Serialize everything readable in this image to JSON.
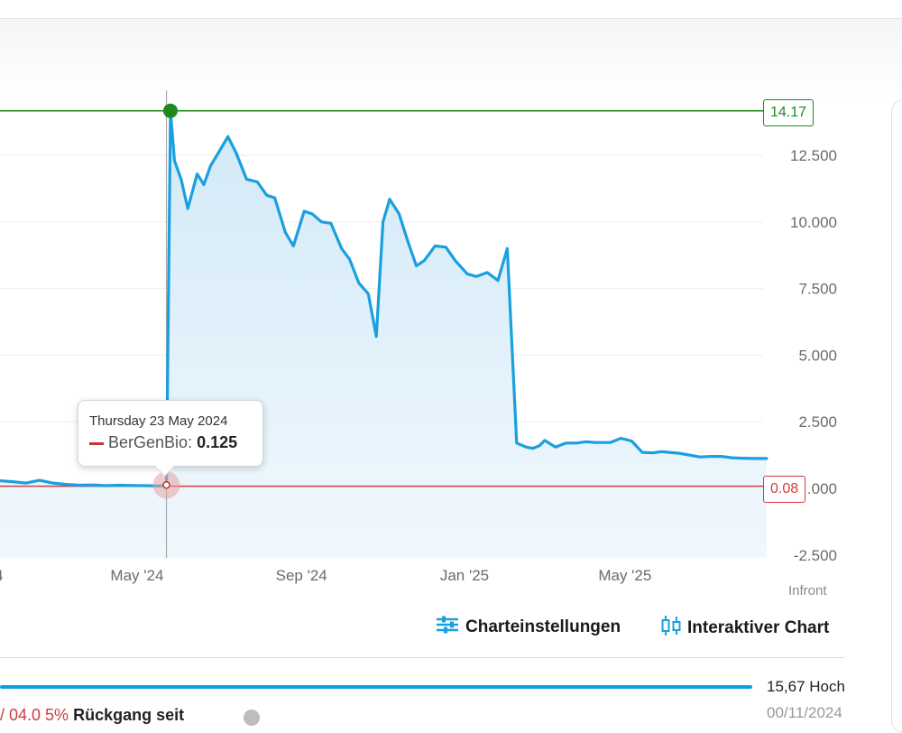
{
  "chart_data": {
    "type": "area",
    "series": [
      {
        "name": "BerGenBio",
        "x": [
          "2024-01-15",
          "2024-01-29",
          "2024-02-08",
          "2024-02-18",
          "2024-02-28",
          "2024-03-09",
          "2024-03-19",
          "2024-03-29",
          "2024-04-08",
          "2024-04-18",
          "2024-04-28",
          "2024-05-08",
          "2024-05-18",
          "2024-05-23",
          "2024-05-26",
          "2024-05-29",
          "2024-06-03",
          "2024-06-08",
          "2024-06-15",
          "2024-06-20",
          "2024-06-25",
          "2024-07-01",
          "2024-07-08",
          "2024-07-14",
          "2024-07-22",
          "2024-07-30",
          "2024-08-06",
          "2024-08-12",
          "2024-08-20",
          "2024-08-26",
          "2024-09-03",
          "2024-09-09",
          "2024-09-16",
          "2024-09-23",
          "2024-10-01",
          "2024-10-07",
          "2024-10-14",
          "2024-10-21",
          "2024-10-27",
          "2024-11-01",
          "2024-11-06",
          "2024-11-13",
          "2024-11-20",
          "2024-11-26",
          "2024-12-02",
          "2024-12-10",
          "2024-12-18",
          "2024-12-25",
          "2025-01-03",
          "2025-01-10",
          "2025-01-18",
          "2025-01-26",
          "2025-02-02",
          "2025-02-09",
          "2025-02-16",
          "2025-02-21",
          "2025-02-26",
          "2025-03-02",
          "2025-03-10",
          "2025-03-18",
          "2025-03-26",
          "2025-04-02",
          "2025-04-08",
          "2025-04-14",
          "2025-04-20",
          "2025-04-28",
          "2025-05-06",
          "2025-05-14",
          "2025-05-22",
          "2025-05-28",
          "2025-06-03",
          "2025-06-10",
          "2025-06-18",
          "2025-06-26",
          "2025-07-04",
          "2025-07-12",
          "2025-07-20",
          "2025-07-28",
          "2025-08-05",
          "2025-08-15"
        ],
        "values": [
          0.3,
          0.25,
          0.2,
          0.3,
          0.2,
          0.15,
          0.12,
          0.13,
          0.1,
          0.12,
          0.11,
          0.1,
          0.09,
          0.125,
          14.17,
          12.3,
          11.6,
          10.5,
          11.8,
          11.4,
          12.1,
          12.6,
          13.2,
          12.6,
          11.6,
          11.5,
          11.0,
          10.9,
          9.6,
          9.1,
          10.4,
          10.3,
          10.0,
          9.95,
          9.0,
          8.6,
          7.7,
          7.3,
          5.7,
          10.0,
          10.85,
          10.3,
          9.2,
          8.35,
          8.55,
          9.1,
          9.05,
          8.55,
          8.05,
          7.95,
          8.1,
          7.8,
          9.0,
          1.7,
          1.55,
          1.5,
          1.6,
          1.8,
          1.55,
          1.7,
          1.7,
          1.75,
          1.72,
          1.72,
          1.72,
          1.88,
          1.78,
          1.35,
          1.33,
          1.38,
          1.35,
          1.32,
          1.25,
          1.18,
          1.2,
          1.2,
          1.15,
          1.13,
          1.12,
          1.12
        ]
      }
    ],
    "x_tick_labels": [
      "May '24",
      "Sep '24",
      "Jan '25",
      "May '25"
    ],
    "x_tick_dates": [
      "2024-05-01",
      "2024-09-01",
      "2025-01-01",
      "2025-05-01"
    ],
    "y_tick_labels": [
      "12.500",
      "10.000",
      "7.500",
      "5.000",
      "2.500",
      ".000",
      "-2.500"
    ],
    "y_tick_values": [
      12.5,
      10.0,
      7.5,
      5.0,
      2.5,
      0,
      -2.5
    ],
    "ylim": [
      -2.6,
      14.9
    ],
    "grid": true,
    "high_marker": {
      "label": "14.17",
      "value": 14.17,
      "date": "2024-05-26",
      "color": "#1e8a1e"
    },
    "low_marker": {
      "label": "0.08",
      "value": 0.08,
      "color": "#d43a3a"
    },
    "tooltip": {
      "date": "Thursday 23 May 2024",
      "series": "BerGenBio",
      "value": "0.125",
      "x": "2024-05-23",
      "y": 0.125
    },
    "colors": {
      "line": "#1a9fdf",
      "fill": "#d7ecf8",
      "grid": "#eeeeee"
    }
  },
  "source": "Infront",
  "toolbar": {
    "settings_label": "Charteinstellungen",
    "interactive_label": "Interaktiver Chart"
  },
  "range": {
    "high_label": "15,67 Hoch",
    "date_fragment": "00/11/2024"
  },
  "bottom": {
    "red_fragment": "/  04.0 5%",
    "dark_fragment": "Rückgang seit"
  }
}
